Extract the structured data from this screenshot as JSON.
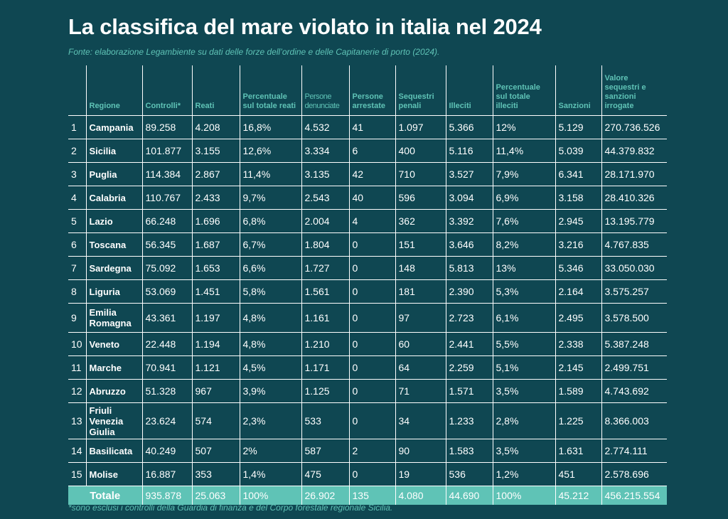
{
  "title": "La classifica del mare violato in italia nel 2024",
  "source": "Fonte: elaborazione Legambiente su dati delle forze dell’ordine e delle Capitanerie di porto (2024).",
  "headers": [
    "",
    "Regione",
    "Controlli*",
    "Reati",
    "Percentuale sul totale reati",
    "Persone denunciate",
    "Persone arrestate",
    "Sequestri penali",
    "Illeciti",
    "Percentuale sul totale illeciti",
    "Sanzioni",
    "Valore sequestri e sanzioni irrogate"
  ],
  "rows": [
    [
      "1",
      "Campania",
      "89.258",
      "4.208",
      "16,8%",
      "4.532",
      "41",
      "1.097",
      "5.366",
      "12%",
      "5.129",
      "270.736.526"
    ],
    [
      "2",
      "Sicilia",
      "101.877",
      "3.155",
      "12,6%",
      "3.334",
      "6",
      "400",
      "5.116",
      "11,4%",
      "5.039",
      "44.379.832"
    ],
    [
      "3",
      "Puglia",
      "114.384",
      "2.867",
      "11,4%",
      "3.135",
      "42",
      "710",
      "3.527",
      "7,9%",
      "6.341",
      "28.171.970"
    ],
    [
      "4",
      "Calabria",
      "110.767",
      "2.433",
      "9,7%",
      "2.543",
      "40",
      "596",
      "3.094",
      "6,9%",
      "3.158",
      "28.410.326"
    ],
    [
      "5",
      "Lazio",
      "66.248",
      "1.696",
      "6,8%",
      "2.004",
      "4",
      "362",
      "3.392",
      "7,6%",
      "2.945",
      "13.195.779"
    ],
    [
      "6",
      "Toscana",
      "56.345",
      "1.687",
      "6,7%",
      "1.804",
      "0",
      "151",
      "3.646",
      "8,2%",
      "3.216",
      "4.767.835"
    ],
    [
      "7",
      "Sardegna",
      "75.092",
      "1.653",
      "6,6%",
      "1.727",
      "0",
      "148",
      "5.813",
      "13%",
      "5.346",
      "33.050.030"
    ],
    [
      "8",
      "Liguria",
      "53.069",
      "1.451",
      "5,8%",
      "1.561",
      "0",
      "181",
      "2.390",
      "5,3%",
      "2.164",
      "3.575.257"
    ],
    [
      "9",
      "Emilia Romagna",
      "43.361",
      "1.197",
      "4,8%",
      "1.161",
      "0",
      "97",
      "2.723",
      "6,1%",
      "2.495",
      "3.578.500"
    ],
    [
      "10",
      "Veneto",
      "22.448",
      "1.194",
      "4,8%",
      "1.210",
      "0",
      "60",
      "2.441",
      "5,5%",
      "2.338",
      "5.387.248"
    ],
    [
      "11",
      "Marche",
      "70.941",
      "1.121",
      "4,5%",
      "1.171",
      "0",
      "64",
      "2.259",
      "5,1%",
      "2.145",
      "2.499.751"
    ],
    [
      "12",
      "Abruzzo",
      "51.328",
      "967",
      "3,9%",
      "1.125",
      "0",
      "71",
      "1.571",
      "3,5%",
      "1.589",
      "4.743.692"
    ],
    [
      "13",
      "Friuli Venezia Giulia",
      "23.624",
      "574",
      "2,3%",
      "533",
      "0",
      "34",
      "1.233",
      "2,8%",
      "1.225",
      "8.366.003"
    ],
    [
      "14",
      "Basilicata",
      "40.249",
      "507",
      "2%",
      "587",
      "2",
      "90",
      "1.583",
      "3,5%",
      "1.631",
      "2.774.111"
    ],
    [
      "15",
      "Molise",
      "16.887",
      "353",
      "1,4%",
      "475",
      "0",
      "19",
      "536",
      "1,2%",
      "451",
      "2.578.696"
    ]
  ],
  "total": [
    "Totale",
    "935.878",
    "25.063",
    "100%",
    "26.902",
    "135",
    "4.080",
    "44.690",
    "100%",
    "45.212",
    "456.215.554"
  ],
  "footnote": "*sono esclusi i controlli della Guardia di finanza e del Corpo forestale regionale Sicilia.",
  "colors": {
    "background": "#0f4752",
    "accent": "#5fc3b6",
    "text": "#ffffff"
  }
}
